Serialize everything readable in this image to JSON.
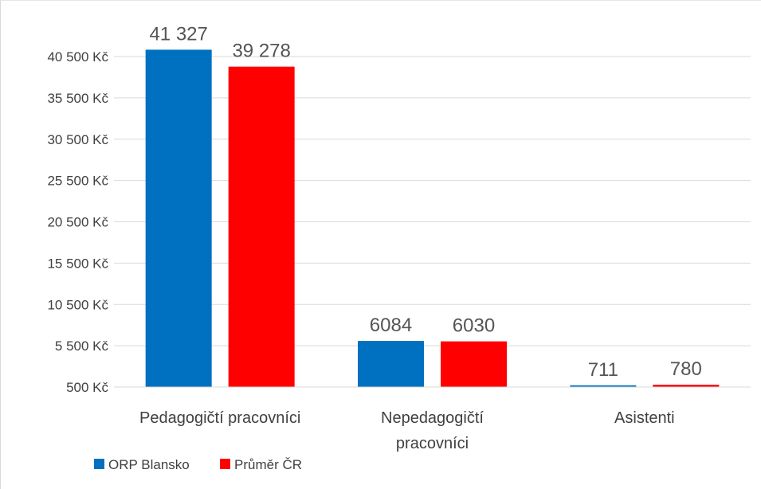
{
  "chart_data": {
    "type": "bar",
    "categories": [
      "Pedagogičtí pracovníci",
      "Nepedagogičtí pracovníci",
      "Asistenti"
    ],
    "series": [
      {
        "name": "ORP Blansko",
        "color": "#0070C0",
        "values": [
          41327,
          6084,
          711
        ],
        "data_labels": [
          "41 327",
          "6084",
          "711"
        ]
      },
      {
        "name": "Průměr ČR",
        "color": "#FF0000",
        "values": [
          39278,
          6030,
          780
        ],
        "data_labels": [
          "39 278",
          "6030",
          "780"
        ]
      }
    ],
    "ylim": [
      500,
      40500
    ],
    "yticks": [
      500,
      5500,
      10500,
      15500,
      20500,
      25500,
      30500,
      35500,
      40500
    ],
    "ytick_labels": [
      "500 Kč",
      "5 500 Kč",
      "10 500 Kč",
      "15 500 Kč",
      "20 500 Kč",
      "25 500 Kč",
      "30 500 Kč",
      "35 500 Kč",
      "40 500 Kč"
    ],
    "category_label_lines": [
      [
        "Pedagogičtí pracovníci"
      ],
      [
        "Nepedagogičtí",
        "pracovníci"
      ],
      [
        "Asistenti"
      ]
    ],
    "grid": true,
    "legend_position": "bottom-left",
    "title": "",
    "xlabel": "",
    "ylabel": ""
  }
}
